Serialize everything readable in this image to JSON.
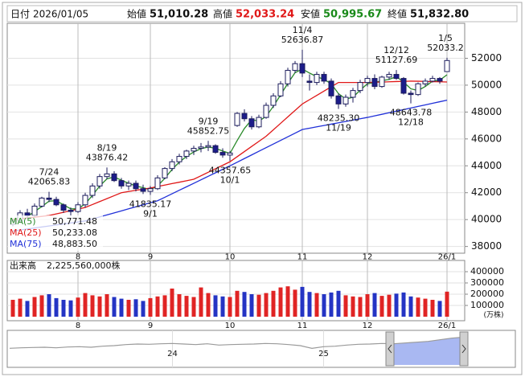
{
  "header": {
    "date_label": "日付",
    "date": "2026/01/05",
    "open_label": "始値",
    "open": "51,010.28",
    "high_label": "高値",
    "high": "52,033.24",
    "low_label": "安値",
    "low": "50,995.67",
    "close_label": "終値",
    "close": "51,832.80"
  },
  "chart_data": [
    {
      "type": "candlestick",
      "categories": [
        null,
        null,
        null,
        null,
        null,
        null,
        null,
        null,
        null,
        "8",
        null,
        null,
        null,
        null,
        null,
        null,
        null,
        null,
        null,
        "9",
        null,
        null,
        null,
        null,
        null,
        null,
        null,
        null,
        null,
        null,
        "10",
        null,
        null,
        null,
        null,
        null,
        null,
        null,
        null,
        null,
        "11",
        null,
        null,
        null,
        null,
        null,
        null,
        null,
        null,
        "12",
        null,
        null,
        null,
        null,
        null,
        null,
        null,
        null,
        null,
        null,
        "26/1"
      ],
      "ohlc": [
        [
          39650,
          40100,
          39500,
          39900
        ],
        [
          39900,
          40700,
          39800,
          40500
        ],
        [
          40500,
          40800,
          40100,
          40300
        ],
        [
          40300,
          41200,
          40200,
          41000
        ],
        [
          41000,
          41700,
          40900,
          41600
        ],
        [
          41600,
          42065.83,
          41300,
          41500
        ],
        [
          41500,
          41700,
          41000,
          41100
        ],
        [
          41100,
          41200,
          40500,
          40700
        ],
        [
          40700,
          40900,
          40300,
          40600
        ],
        [
          40600,
          41300,
          40500,
          41100
        ],
        [
          41100,
          42000,
          40900,
          41800
        ],
        [
          41800,
          42700,
          41600,
          42500
        ],
        [
          42500,
          43400,
          42300,
          43200
        ],
        [
          43200,
          43876.42,
          43000,
          43400
        ],
        [
          43400,
          43600,
          42800,
          42900
        ],
        [
          42900,
          43100,
          42300,
          42500
        ],
        [
          42500,
          42900,
          42200,
          42700
        ],
        [
          42700,
          42900,
          42100,
          42300
        ],
        [
          42300,
          42600,
          41900,
          42100
        ],
        [
          42100,
          42500,
          41835.17,
          42300
        ],
        [
          42300,
          43300,
          42200,
          43100
        ],
        [
          43100,
          43900,
          43000,
          43800
        ],
        [
          43800,
          44500,
          43600,
          44300
        ],
        [
          44300,
          44900,
          44100,
          44700
        ],
        [
          44700,
          45200,
          44500,
          45100
        ],
        [
          45100,
          45500,
          44800,
          45300
        ],
        [
          45300,
          45700,
          45000,
          45400
        ],
        [
          45400,
          45852.75,
          45100,
          45500
        ],
        [
          45500,
          45600,
          44900,
          45000
        ],
        [
          45000,
          45300,
          44600,
          44800
        ],
        [
          44800,
          45100,
          44357.65,
          44950
        ],
        [
          47000,
          48000,
          46900,
          47900
        ],
        [
          47900,
          48200,
          47300,
          47500
        ],
        [
          47500,
          47700,
          46700,
          46900
        ],
        [
          46900,
          47800,
          46800,
          47600
        ],
        [
          47600,
          48700,
          47500,
          48500
        ],
        [
          48500,
          49400,
          48300,
          49200
        ],
        [
          49200,
          50300,
          49100,
          50100
        ],
        [
          50100,
          51300,
          49900,
          51100
        ],
        [
          51100,
          51800,
          50900,
          51600
        ],
        [
          51600,
          52636.87,
          50600,
          50900
        ],
        [
          50300,
          50800,
          49600,
          50200
        ],
        [
          50200,
          51000,
          50000,
          50800
        ],
        [
          50800,
          51000,
          50100,
          50300
        ],
        [
          50300,
          50500,
          49000,
          49200
        ],
        [
          49200,
          49400,
          48235.3,
          48600
        ],
        [
          48600,
          49300,
          48400,
          49100
        ],
        [
          49100,
          49800,
          48700,
          49600
        ],
        [
          49600,
          50400,
          49400,
          50200
        ],
        [
          50200,
          50700,
          49900,
          50500
        ],
        [
          50500,
          50800,
          49700,
          49900
        ],
        [
          49900,
          50700,
          49800,
          50600
        ],
        [
          50600,
          51000,
          50400,
          50800
        ],
        [
          50800,
          51127.69,
          50400,
          50500
        ],
        [
          50500,
          50600,
          49300,
          49400
        ],
        [
          49400,
          49600,
          48643.78,
          49300
        ],
        [
          49300,
          50200,
          49200,
          50100
        ],
        [
          50100,
          50500,
          49900,
          50300
        ],
        [
          50300,
          50700,
          50200,
          50500
        ],
        [
          50500,
          50600,
          50100,
          50300
        ],
        [
          51010.28,
          52033.24,
          50995.67,
          51832.8
        ]
      ],
      "up_color": "#ffffff",
      "down_color": "#1c1c8a",
      "line_color": "#1c1c5c",
      "series": [
        {
          "name": "MA(5)",
          "color": "#2a8a2a",
          "current": "50,771.48",
          "values": [
            null,
            null,
            40230,
            40600,
            40970,
            41370,
            41400,
            41100,
            40800,
            40800,
            41170,
            41800,
            42500,
            43030,
            43170,
            42930,
            42700,
            42500,
            42370,
            42230,
            42500,
            43070,
            43730,
            44270,
            44700,
            45030,
            45270,
            45400,
            45300,
            45100,
            44920,
            45880,
            46780,
            47430,
            47330,
            47670,
            48430,
            49270,
            50130,
            50930,
            51200,
            50900,
            50630,
            50430,
            50100,
            49370,
            48970,
            49100,
            49630,
            50100,
            50200,
            50330,
            50430,
            50630,
            50230,
            49730,
            49600,
            49900,
            50300,
            50370,
            50771.48
          ]
        },
        {
          "name": "MA(25)",
          "color": "#e01818",
          "current": "50,233.08",
          "values": [
            40000,
            40060,
            40120,
            40180,
            40240,
            40300,
            40420,
            40540,
            40660,
            40780,
            40900,
            41120,
            41340,
            41560,
            41780,
            42000,
            42090,
            42180,
            42260,
            42350,
            42460,
            42570,
            42680,
            42780,
            42890,
            43000,
            43260,
            43520,
            43780,
            44040,
            44300,
            44680,
            45060,
            45440,
            45820,
            46200,
            46680,
            47160,
            47640,
            48120,
            48600,
            48920,
            49240,
            49560,
            49880,
            50200,
            50200,
            50200,
            50200,
            50200,
            50220,
            50230,
            50250,
            50270,
            50280,
            50300,
            50290,
            50280,
            50260,
            50250,
            50233.08
          ]
        },
        {
          "name": "MA(75)",
          "color": "#2030d8",
          "current": "48,883.50",
          "values": [
            39150,
            39225,
            39300,
            39375,
            39450,
            39525,
            39600,
            39675,
            39750,
            39825,
            39900,
            40050,
            40200,
            40350,
            40500,
            40650,
            40800,
            40950,
            41100,
            41250,
            41400,
            41660,
            41920,
            42180,
            42440,
            42700,
            42960,
            43220,
            43480,
            43740,
            44000,
            44270,
            44540,
            44810,
            45080,
            45350,
            45620,
            45890,
            46160,
            46430,
            46700,
            46800,
            46900,
            47000,
            47100,
            47200,
            47300,
            47400,
            47500,
            47600,
            47717,
            47833,
            47950,
            48067,
            48183,
            48300,
            48417,
            48533,
            48650,
            48767,
            48883.5
          ]
        }
      ],
      "ylim": [
        37500,
        54600
      ],
      "yticks": [
        38000,
        40000,
        42000,
        44000,
        46000,
        48000,
        50000,
        52000
      ],
      "grid": true,
      "annotations": [
        {
          "date": "7/24",
          "label": "42065.83",
          "value": 42065.83
        },
        {
          "date": "8/19",
          "label": "43876.42",
          "value": 43876.42
        },
        {
          "date": "9/1",
          "label": "41835.17",
          "value": 41835.17
        },
        {
          "date": "9/19",
          "label": "45852.75",
          "value": 45852.75
        },
        {
          "date": "10/1",
          "label": "44357.65",
          "value": 44357.65
        },
        {
          "date": "11/4",
          "label": "52636.87",
          "value": 52636.87
        },
        {
          "date": "11/19",
          "label": "48235.30",
          "value": 48235.3
        },
        {
          "date": "12/12",
          "label": "51127.69",
          "value": 51127.69
        },
        {
          "date": "12/18",
          "label": "48643.78",
          "value": 48643.78
        },
        {
          "date": "1/5",
          "label": "52033.2",
          "value": 52033.24
        }
      ]
    },
    {
      "type": "bar",
      "title": "出来高",
      "latest": "2,225,560,000株",
      "unit": "(万株)",
      "categories": [
        null,
        null,
        null,
        null,
        null,
        null,
        null,
        null,
        null,
        "8",
        null,
        null,
        null,
        null,
        null,
        null,
        null,
        null,
        null,
        "9",
        null,
        null,
        null,
        null,
        null,
        null,
        null,
        null,
        null,
        null,
        "10",
        null,
        null,
        null,
        null,
        null,
        null,
        null,
        null,
        null,
        "11",
        null,
        null,
        null,
        null,
        null,
        null,
        null,
        null,
        "12",
        null,
        null,
        null,
        null,
        null,
        null,
        null,
        null,
        null,
        null,
        "26/1"
      ],
      "values": [
        150000,
        160000,
        140000,
        175000,
        190000,
        200000,
        165000,
        150000,
        145000,
        170000,
        210000,
        190000,
        180000,
        200000,
        175000,
        160000,
        150000,
        155000,
        140000,
        165000,
        180000,
        190000,
        250000,
        200000,
        185000,
        175000,
        260000,
        210000,
        190000,
        180000,
        175000,
        230000,
        220000,
        200000,
        195000,
        210000,
        230000,
        260000,
        270000,
        240000,
        265000,
        220000,
        210000,
        200000,
        215000,
        230000,
        190000,
        180000,
        175000,
        200000,
        210000,
        185000,
        195000,
        205000,
        215000,
        180000,
        170000,
        160000,
        150000,
        140000,
        222556
      ],
      "up_color": "#e02424",
      "down_color": "#2434c4",
      "ylim": [
        0,
        450000
      ],
      "yticks": [
        100000,
        200000,
        300000,
        400000
      ],
      "grid": true
    },
    {
      "type": "area",
      "categories": [
        null,
        null,
        null,
        null,
        null,
        null,
        null,
        null,
        null,
        null,
        null,
        null,
        null,
        null,
        "24",
        null,
        null,
        null,
        null,
        null,
        null,
        null,
        null,
        null,
        null,
        null,
        null,
        "25",
        null,
        null,
        null,
        null,
        null,
        null,
        null,
        null,
        null,
        null,
        null,
        null
      ],
      "values": [
        31000,
        32000,
        32500,
        33000,
        32000,
        33500,
        34000,
        33000,
        35000,
        36000,
        38000,
        39000,
        38500,
        39500,
        40000,
        39000,
        38000,
        39500,
        37000,
        38000,
        38500,
        39000,
        40000,
        39500,
        38000,
        36000,
        31000,
        34000,
        35000,
        37000,
        38500,
        39000,
        40000,
        39500,
        41000,
        42500,
        44000,
        47000,
        50000,
        51800
      ],
      "color": "#9a9a9a",
      "selection_color": "#a9b8f2",
      "ylim": [
        0,
        60000
      ]
    }
  ]
}
